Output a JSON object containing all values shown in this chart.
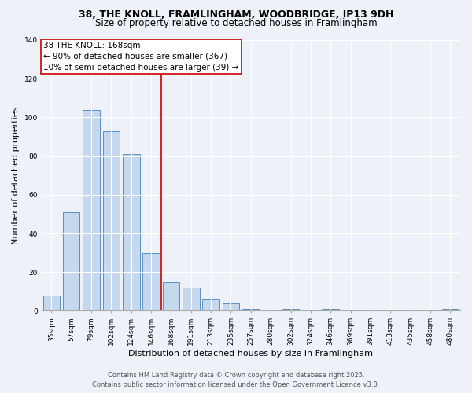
{
  "title1": "38, THE KNOLL, FRAMLINGHAM, WOODBRIDGE, IP13 9DH",
  "title2": "Size of property relative to detached houses in Framlingham",
  "xlabel": "Distribution of detached houses by size in Framlingham",
  "ylabel": "Number of detached properties",
  "categories": [
    "35sqm",
    "57sqm",
    "79sqm",
    "102sqm",
    "124sqm",
    "146sqm",
    "168sqm",
    "191sqm",
    "213sqm",
    "235sqm",
    "257sqm",
    "280sqm",
    "302sqm",
    "324sqm",
    "346sqm",
    "369sqm",
    "391sqm",
    "413sqm",
    "435sqm",
    "458sqm",
    "480sqm"
  ],
  "values": [
    8,
    51,
    104,
    93,
    81,
    30,
    15,
    12,
    6,
    4,
    1,
    0,
    1,
    0,
    1,
    0,
    0,
    0,
    0,
    0,
    1
  ],
  "bar_color": "#c5d8ed",
  "bar_edge_color": "#5a8fc0",
  "annotation_line1": "38 THE KNOLL: 168sqm",
  "annotation_line2": "← 90% of detached houses are smaller (367)",
  "annotation_line3": "10% of semi-detached houses are larger (39) →",
  "vline_color": "#cc0000",
  "annotation_box_color": "#ffffff",
  "annotation_box_edge": "#cc0000",
  "ylim": [
    0,
    140
  ],
  "yticks": [
    0,
    20,
    40,
    60,
    80,
    100,
    120,
    140
  ],
  "footer1": "Contains HM Land Registry data © Crown copyright and database right 2025.",
  "footer2": "Contains public sector information licensed under the Open Government Licence v3.0.",
  "bg_color": "#eef2f8",
  "vline_x_index": 6,
  "title1_fontsize": 9,
  "title2_fontsize": 8.5,
  "xlabel_fontsize": 8,
  "ylabel_fontsize": 8,
  "tick_fontsize": 6.5,
  "footer_fontsize": 6,
  "annotation_fontsize": 7.5
}
